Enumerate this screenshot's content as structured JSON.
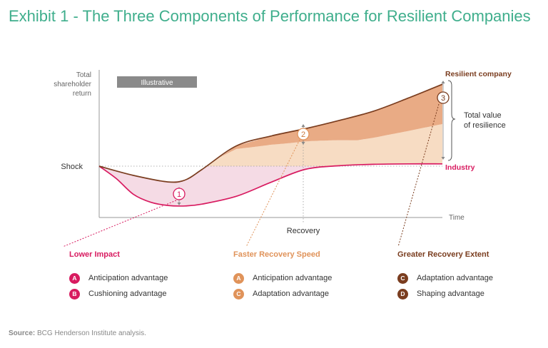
{
  "title": "Exhibit 1 - The Three Components of Performance for Resilient Companies",
  "source_label": "Source:",
  "source_text": " BCG Henderson Institute analysis.",
  "chart_data": {
    "type": "area",
    "style_tag": "Illustrative",
    "y_axis_label": [
      "Total",
      "shareholder",
      "return"
    ],
    "x_axis_label": "Time",
    "annotations": {
      "shock": "Shock",
      "recovery": "Recovery",
      "total_value": [
        "Total value",
        "of resilience"
      ]
    },
    "series": [
      {
        "name": "Resilient company",
        "color": "#7a3d1f",
        "x": [
          0,
          0.1,
          0.2,
          0.25,
          0.3,
          0.4,
          0.5,
          0.6,
          0.7,
          0.8,
          0.9,
          1.0
        ],
        "y": [
          0.555,
          0.455,
          0.385,
          0.405,
          0.52,
          0.775,
          0.88,
          0.96,
          1.05,
          1.15,
          1.29,
          1.44
        ]
      },
      {
        "name": "Industry",
        "color": "#d81b60",
        "x": [
          0,
          0.05,
          0.1,
          0.15,
          0.2,
          0.25,
          0.3,
          0.4,
          0.5,
          0.6,
          0.7,
          0.8,
          0.9,
          1.0
        ],
        "y": [
          0.555,
          0.42,
          0.25,
          0.165,
          0.13,
          0.125,
          0.145,
          0.23,
          0.38,
          0.52,
          0.56,
          0.575,
          0.58,
          0.58
        ]
      }
    ],
    "components": [
      {
        "marker": "1",
        "name": "Lower Impact",
        "color": "#d81b60",
        "advantages": [
          {
            "badge": "A",
            "label": "Anticipation advantage"
          },
          {
            "badge": "B",
            "label": "Cushioning advantage"
          }
        ]
      },
      {
        "marker": "2",
        "name": "Faster Recovery Speed",
        "color": "#e0935a",
        "advantages": [
          {
            "badge": "A",
            "label": "Anticipation advantage"
          },
          {
            "badge": "C",
            "label": "Adaptation advantage"
          }
        ]
      },
      {
        "marker": "3",
        "name": "Greater Recovery Extent",
        "color": "#7a3d1f",
        "advantages": [
          {
            "badge": "C",
            "label": "Adaptation advantage"
          },
          {
            "badge": "D",
            "label": "Shaping advantage"
          }
        ]
      }
    ]
  }
}
